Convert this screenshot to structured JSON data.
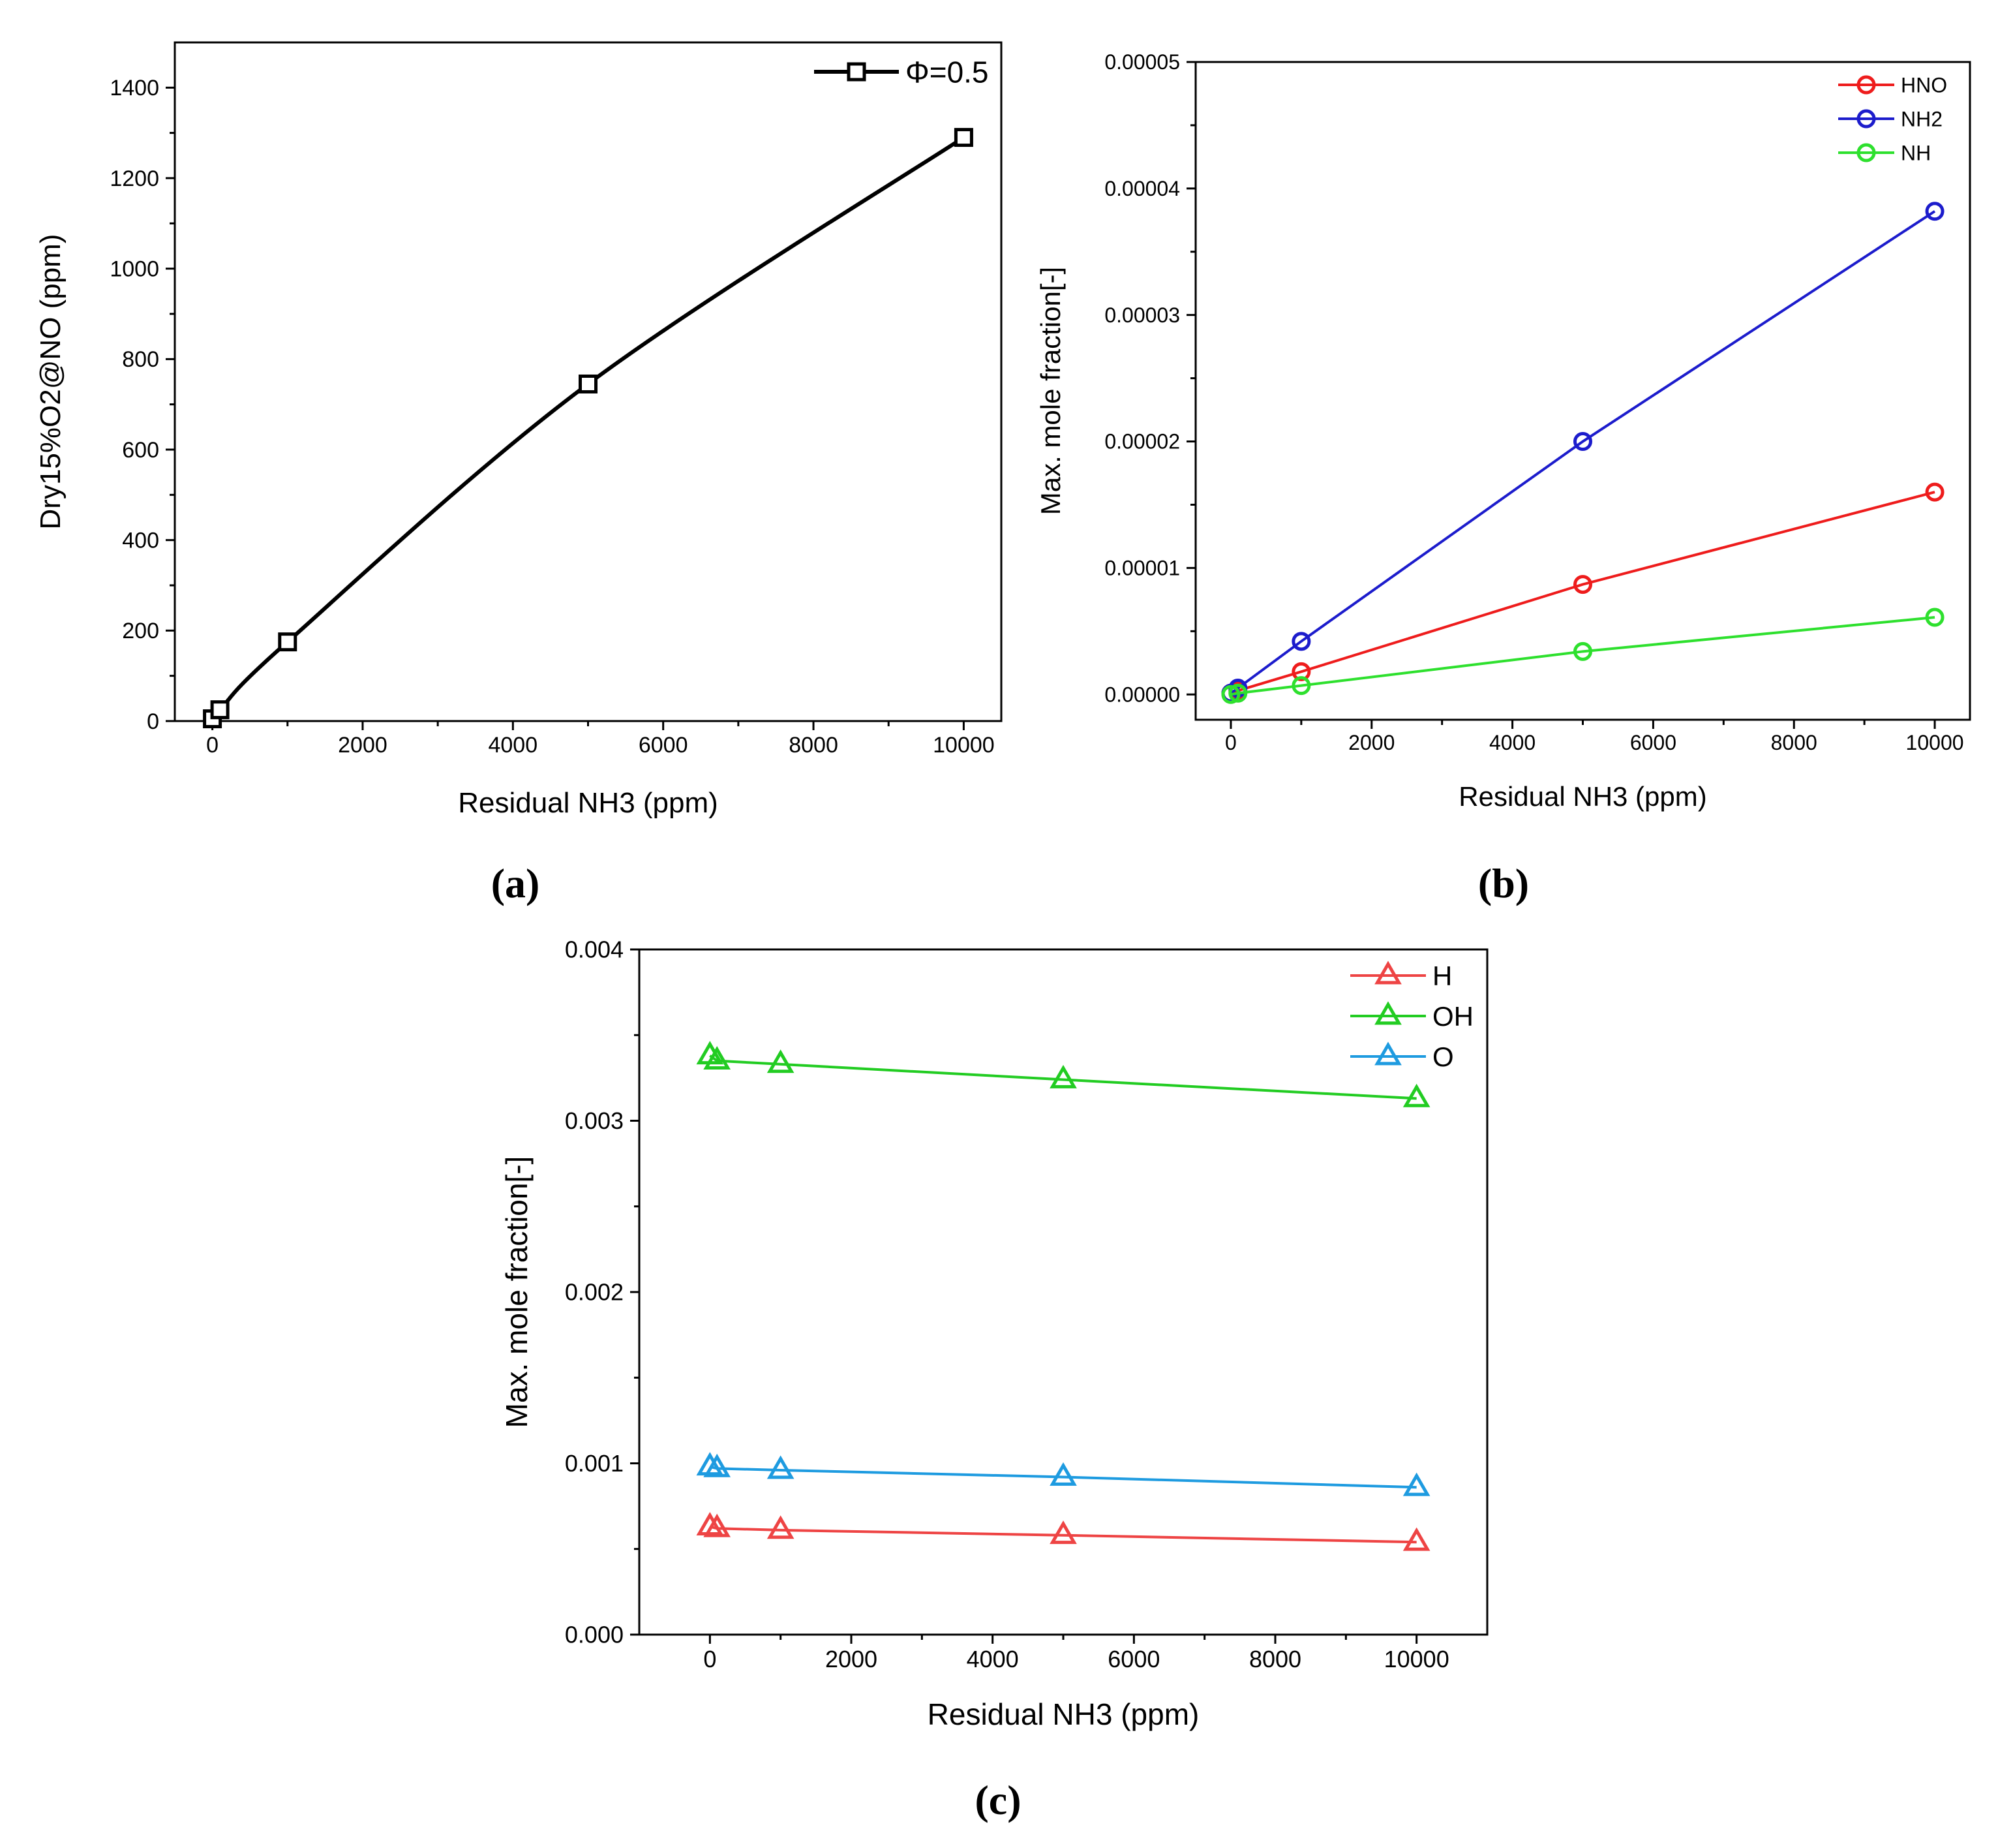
{
  "chart_data": [
    {
      "id": "a",
      "panel_label": "(a)",
      "type": "line",
      "xlabel": "Residual NH3 (ppm)",
      "ylabel": "Dry15%O2@NO (ppm)",
      "xlim": [
        -500,
        10500
      ],
      "ylim": [
        0,
        1500
      ],
      "xticks": [
        0,
        2000,
        4000,
        6000,
        8000,
        10000
      ],
      "yticks": [
        0,
        200,
        400,
        600,
        800,
        1000,
        1200,
        1400
      ],
      "ytick_labels": [
        "0",
        "200",
        "400",
        "600",
        "800",
        "1000",
        "1200",
        "1400"
      ],
      "legend_position": "top-right",
      "series": [
        {
          "name": "Φ=0.5",
          "color": "#000000",
          "marker": "square",
          "smooth": true,
          "x": [
            0,
            100,
            1000,
            5000,
            10000
          ],
          "y": [
            5,
            25,
            175,
            745,
            1290
          ]
        }
      ]
    },
    {
      "id": "b",
      "panel_label": "(b)",
      "type": "line",
      "xlabel": "Residual NH3 (ppm)",
      "ylabel": "Max. mole fraction[-]",
      "xlim": [
        -500,
        10500
      ],
      "ylim": [
        -2e-06,
        5e-05
      ],
      "xticks": [
        0,
        2000,
        4000,
        6000,
        8000,
        10000
      ],
      "yticks": [
        0,
        1e-05,
        2e-05,
        3e-05,
        4e-05,
        5e-05
      ],
      "ytick_labels": [
        "0.00000",
        "0.00001",
        "0.00002",
        "0.00003",
        "0.00004",
        "0.00005"
      ],
      "legend_position": "top-right",
      "series": [
        {
          "name": "HNO",
          "color": "#ee1c1c",
          "marker": "circle",
          "x": [
            0,
            100,
            1000,
            5000,
            10000
          ],
          "y": [
            1e-07,
            3e-07,
            1.8e-06,
            8.7e-06,
            1.6e-05
          ]
        },
        {
          "name": "NH2",
          "color": "#1c1ccc",
          "marker": "circle",
          "x": [
            0,
            100,
            1000,
            5000,
            10000
          ],
          "y": [
            1e-07,
            5e-07,
            4.2e-06,
            2e-05,
            3.82e-05
          ]
        },
        {
          "name": "NH",
          "color": "#2ee02e",
          "marker": "circle",
          "x": [
            0,
            100,
            1000,
            5000,
            10000
          ],
          "y": [
            0.0,
            1e-07,
            7e-07,
            3.4e-06,
            6.1e-06
          ]
        }
      ]
    },
    {
      "id": "c",
      "panel_label": "(c)",
      "type": "line",
      "xlabel": "Residual NH3 (ppm)",
      "ylabel": "Max. mole fraction[-]",
      "xlim": [
        -1000,
        11000
      ],
      "ylim": [
        0,
        0.004
      ],
      "xticks": [
        0,
        2000,
        4000,
        6000,
        8000,
        10000
      ],
      "yticks": [
        0,
        0.001,
        0.002,
        0.003,
        0.004
      ],
      "ytick_labels": [
        "0.000",
        "0.001",
        "0.002",
        "0.003",
        "0.004"
      ],
      "legend_position": "top-right",
      "series": [
        {
          "name": "H",
          "color": "#ee4444",
          "marker": "triangle",
          "x": [
            0,
            100,
            1000,
            5000,
            10000
          ],
          "y": [
            0.00063,
            0.00062,
            0.00061,
            0.00058,
            0.00054
          ]
        },
        {
          "name": "OH",
          "color": "#22cc22",
          "marker": "triangle",
          "x": [
            0,
            100,
            1000,
            5000,
            10000
          ],
          "y": [
            0.00338,
            0.00335,
            0.00333,
            0.00324,
            0.00313
          ]
        },
        {
          "name": "O",
          "color": "#1e9be0",
          "marker": "triangle",
          "x": [
            0,
            100,
            1000,
            5000,
            10000
          ],
          "y": [
            0.00098,
            0.00097,
            0.00096,
            0.00092,
            0.00086
          ]
        }
      ]
    }
  ]
}
